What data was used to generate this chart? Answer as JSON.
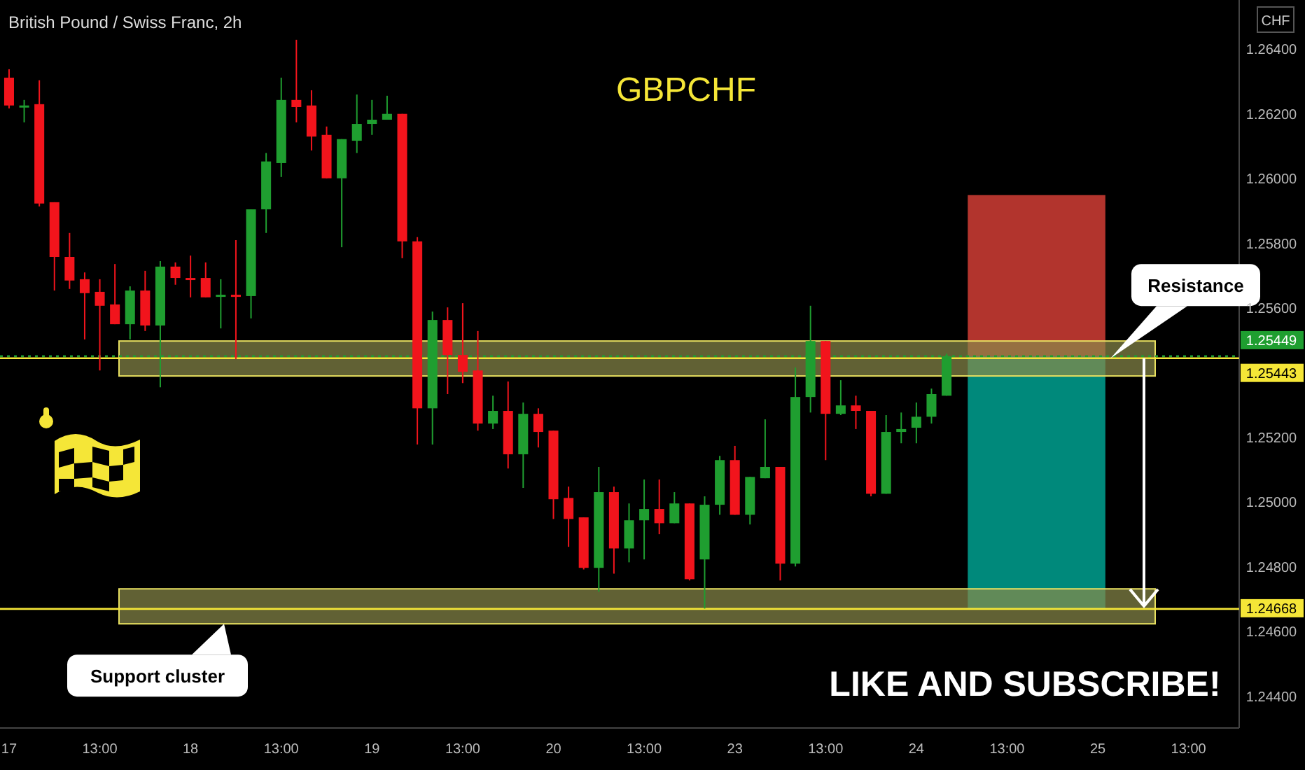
{
  "chart_data": {
    "type": "candlestick",
    "title": "GBPCHF",
    "subtitle": "British Pound / Swiss Franc, 2h",
    "annotations": [
      "LIKE AND SUBSCRIBE!",
      "CHF"
    ],
    "categories": [
      "17",
      null,
      null,
      null,
      null,
      null,
      "13:00",
      null,
      null,
      null,
      null,
      null,
      "18",
      null,
      null,
      null,
      null,
      null,
      "13:00",
      null,
      null,
      null,
      null,
      null,
      "19",
      null,
      null,
      null,
      null,
      null,
      "13:00",
      null,
      null,
      null,
      null,
      null,
      "20",
      null,
      null,
      null,
      null,
      null,
      "13:00",
      null,
      null,
      null,
      null,
      null,
      "23",
      null,
      null,
      null,
      null,
      null,
      "13:00",
      null,
      null,
      null,
      null,
      null,
      "24",
      null,
      null,
      null,
      null,
      null,
      "13:00",
      null,
      null,
      null,
      null,
      null,
      "25",
      null,
      null,
      null,
      null,
      null,
      "13:00",
      null,
      null,
      null,
      null
    ],
    "ohlc": [
      [
        1.2631,
        1.26336,
        1.26215,
        1.26224
      ],
      [
        1.26224,
        1.26241,
        1.26172,
        1.26224
      ],
      [
        1.26228,
        1.26302,
        1.25912,
        1.25921
      ],
      [
        1.25925,
        1.25925,
        1.25652,
        1.25756
      ],
      [
        1.25756,
        1.2583,
        1.25657,
        1.25683
      ],
      [
        1.25687,
        1.25708,
        1.25501,
        1.25644
      ],
      [
        1.25648,
        1.25687,
        1.25405,
        1.25605
      ],
      [
        1.25609,
        1.25734,
        1.25548,
        1.25548
      ],
      [
        1.25548,
        1.25665,
        1.25501,
        1.25652
      ],
      [
        1.25652,
        1.25713,
        1.25527,
        1.25544
      ],
      [
        1.25544,
        1.25743,
        1.25353,
        1.25726
      ],
      [
        1.25726,
        1.25739,
        1.2567,
        1.25691
      ],
      [
        1.25691,
        1.2576,
        1.25631,
        1.25687
      ],
      [
        1.25691,
        1.25739,
        1.25631,
        1.25631
      ],
      [
        1.25635,
        1.25687,
        1.25535,
        1.25639
      ],
      [
        1.25639,
        1.25808,
        1.2544,
        1.25635
      ],
      [
        1.25635,
        1.25903,
        1.25566,
        1.25903
      ],
      [
        1.25903,
        1.26077,
        1.2583,
        1.26051
      ],
      [
        1.26046,
        1.2631,
        1.26003,
        1.26241
      ],
      [
        1.26241,
        1.26427,
        1.26172,
        1.26219
      ],
      [
        1.26224,
        1.26271,
        1.26085,
        1.26128
      ],
      [
        1.26133,
        1.26159,
        1.25999,
        1.25999
      ],
      [
        1.25999,
        1.2612,
        1.25786,
        1.2612
      ],
      [
        1.26115,
        1.26258,
        1.26077,
        1.26167
      ],
      [
        1.26167,
        1.26241,
        1.26133,
        1.2618
      ],
      [
        1.2618,
        1.26254,
        1.2618,
        1.26198
      ],
      [
        1.26198,
        1.26198,
        1.25752,
        1.25804
      ],
      [
        1.25804,
        1.25817,
        1.25176,
        1.25288
      ],
      [
        1.25288,
        1.25587,
        1.25176,
        1.25561
      ],
      [
        1.25561,
        1.256,
        1.25332,
        1.25453
      ],
      [
        1.25453,
        1.25613,
        1.25366,
        1.25401
      ],
      [
        1.25405,
        1.25527,
        1.25219,
        1.25241
      ],
      [
        1.25241,
        1.25327,
        1.25224,
        1.2528
      ],
      [
        1.2528,
        1.25371,
        1.25102,
        1.25146
      ],
      [
        1.25146,
        1.25306,
        1.25042,
        1.25271
      ],
      [
        1.25271,
        1.25288,
        1.25167,
        1.25215
      ],
      [
        1.25219,
        1.25219,
        1.24946,
        1.25007
      ],
      [
        1.25011,
        1.25046,
        1.2486,
        1.24946
      ],
      [
        1.24951,
        1.24951,
        1.2479,
        1.24795
      ],
      [
        1.24795,
        1.25107,
        1.24721,
        1.25029
      ],
      [
        1.25029,
        1.25046,
        1.24777,
        1.24855
      ],
      [
        1.24855,
        1.24994,
        1.24812,
        1.24942
      ],
      [
        1.24942,
        1.25068,
        1.24821,
        1.24977
      ],
      [
        1.24977,
        1.25068,
        1.24899,
        1.24933
      ],
      [
        1.24933,
        1.25029,
        1.24933,
        1.24994
      ],
      [
        1.24994,
        1.24994,
        1.24756,
        1.2476
      ],
      [
        1.24821,
        1.25016,
        1.24669,
        1.2499
      ],
      [
        1.2499,
        1.25141,
        1.24959,
        1.25128
      ],
      [
        1.25128,
        1.25172,
        1.24959,
        1.24959
      ],
      [
        1.24959,
        1.25076,
        1.24929,
        1.25076
      ],
      [
        1.25072,
        1.25254,
        1.25072,
        1.25107
      ],
      [
        1.25107,
        1.25107,
        1.24756,
        1.24808
      ],
      [
        1.24808,
        1.25414,
        1.24799,
        1.25323
      ],
      [
        1.25323,
        1.25605,
        1.25275,
        1.25496
      ],
      [
        1.25496,
        1.25496,
        1.25128,
        1.25271
      ],
      [
        1.25271,
        1.25375,
        1.25267,
        1.25297
      ],
      [
        1.25297,
        1.25327,
        1.25224,
        1.2528
      ],
      [
        1.2528,
        1.2528,
        1.25016,
        1.25024
      ],
      [
        1.25024,
        1.25267,
        1.25024,
        1.25215
      ],
      [
        1.25215,
        1.25275,
        1.2518,
        1.25224
      ],
      [
        1.25228,
        1.25306,
        1.2518,
        1.25262
      ],
      [
        1.25262,
        1.25349,
        1.25241,
        1.25332
      ],
      [
        1.25327,
        1.25457,
        1.25327,
        1.25449
      ],
      null,
      null,
      null,
      null,
      null,
      null,
      null,
      null,
      null,
      null,
      null,
      null,
      null,
      null,
      null,
      null,
      null,
      null,
      null,
      null
    ],
    "colors": [
      "#f2141c",
      "#1f9e30",
      "#f2141c",
      "#f2141c",
      "#f2141c",
      "#f2141c",
      "#f2141c",
      "#f2141c",
      "#1f9e30",
      "#f2141c",
      "#1f9e30",
      "#f2141c",
      "#f2141c",
      "#f2141c",
      "#1f9e30",
      "#f2141c",
      "#1f9e30",
      "#1f9e30",
      "#1f9e30",
      "#f2141c",
      "#f2141c",
      "#f2141c",
      "#1f9e30",
      "#1f9e30",
      "#1f9e30",
      "#1f9e30",
      "#f2141c",
      "#f2141c",
      "#1f9e30",
      "#f2141c",
      "#f2141c",
      "#f2141c",
      "#1f9e30",
      "#f2141c",
      "#1f9e30",
      "#f2141c",
      "#f2141c",
      "#f2141c",
      "#f2141c",
      "#1f9e30",
      "#f2141c",
      "#1f9e30",
      "#1f9e30",
      "#f2141c",
      "#1f9e30",
      "#f2141c",
      "#1f9e30",
      "#1f9e30",
      "#f2141c",
      "#1f9e30",
      "#1f9e30",
      "#f2141c",
      "#1f9e30",
      "#1f9e30",
      "#f2141c",
      "#1f9e30",
      "#f2141c",
      "#f2141c",
      "#1f9e30",
      "#1f9e30",
      "#1f9e30",
      "#1f9e30",
      "#1f9e30",
      null,
      null,
      null,
      null,
      null,
      null,
      null,
      null,
      null,
      null,
      null,
      null,
      null,
      null,
      null,
      null,
      null,
      null,
      null,
      null
    ],
    "bands": [
      {
        "axis": "y",
        "from": 1.25449,
        "to": 1.25947,
        "color": "#b2342d"
      },
      {
        "axis": "y",
        "from": 1.24668,
        "to": 1.25449,
        "color": "#00897b"
      },
      {
        "axis": "y",
        "from": 1.25388,
        "to": 1.25496,
        "label": "Resistance",
        "color": "#8a8a4a"
      },
      {
        "axis": "y",
        "from": 1.24622,
        "to": 1.2473,
        "label": "Support cluster",
        "color": "#8a8a4a"
      }
    ],
    "ref_lines": [
      {
        "axis": "y",
        "value": 1.25443,
        "label": "1.25443",
        "color": "#f5e637"
      },
      {
        "axis": "y",
        "value": 1.24668,
        "label": "1.24668",
        "color": "#f5e637"
      },
      {
        "axis": "y",
        "value": 1.25449,
        "label": "1.25449",
        "color": "#1f9e30",
        "line_style": "dotted"
      }
    ],
    "ylim": [
      1.243,
      1.2655
    ],
    "yticks": [
      {
        "value": 1.244,
        "label": "1.24400"
      },
      {
        "value": 1.246,
        "label": "1.24600"
      },
      {
        "value": 1.248,
        "label": "1.24800"
      },
      {
        "value": 1.25,
        "label": "1.25000"
      },
      {
        "value": 1.252,
        "label": "1.25200"
      },
      {
        "value": 1.256,
        "label": "1.25600"
      },
      {
        "value": 1.258,
        "label": "1.25800"
      },
      {
        "value": 1.26,
        "label": "1.26000"
      },
      {
        "value": 1.262,
        "label": "1.26200"
      },
      {
        "value": 1.264,
        "label": "1.26400"
      }
    ],
    "grid": false
  }
}
